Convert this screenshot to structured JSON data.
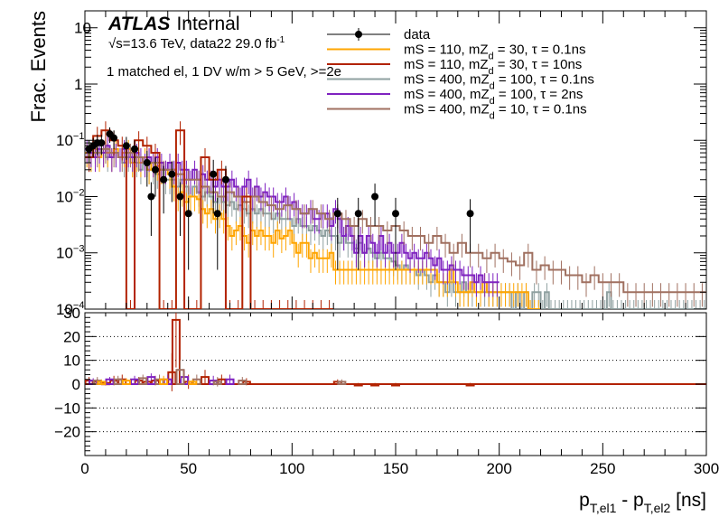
{
  "chart_data": [
    {
      "type": "histogram",
      "label_atlas": "ATLAS",
      "label_status": "Internal",
      "energy_text": "√s=13.6 TeV, data22 29.0 fb",
      "energy_sup": "-1",
      "selection_text": "1 matched el, 1 DV w/m > 5 GeV, >=2e",
      "ylabel": "Frac. Events",
      "yscale": "log",
      "ylim": [
        0.0001,
        20
      ],
      "xlim": [
        0,
        300
      ],
      "yticks": [
        {
          "value": 10,
          "base": "10",
          "exp": ""
        },
        {
          "value": 1,
          "base": "1",
          "exp": ""
        },
        {
          "value": 0.1,
          "base": "10",
          "exp": "−1"
        },
        {
          "value": 0.01,
          "base": "10",
          "exp": "−2"
        },
        {
          "value": 0.001,
          "base": "10",
          "exp": "−3"
        },
        {
          "value": 0.0001,
          "base": "10",
          "exp": "−4"
        }
      ],
      "series": [
        {
          "name": "data",
          "kind": "points",
          "color": "#000000",
          "points": [
            {
              "x": 2,
              "y": 0.07,
              "err": 0.03
            },
            {
              "x": 4,
              "y": 0.08,
              "err": 0.03
            },
            {
              "x": 6,
              "y": 0.09,
              "err": 0.035
            },
            {
              "x": 8,
              "y": 0.09,
              "err": 0.035
            },
            {
              "x": 12,
              "y": 0.13,
              "err": 0.04
            },
            {
              "x": 14,
              "y": 0.11,
              "err": 0.04
            },
            {
              "x": 20,
              "y": 0.08,
              "err": 0.035
            },
            {
              "x": 24,
              "y": 0.07,
              "err": 0.03
            },
            {
              "x": 30,
              "y": 0.04,
              "err": 0.025
            },
            {
              "x": 32,
              "y": 0.01,
              "err": 0.008
            },
            {
              "x": 34,
              "y": 0.03,
              "err": 0.02
            },
            {
              "x": 38,
              "y": 0.02,
              "err": 0.015
            },
            {
              "x": 42,
              "y": 0.025,
              "err": 0.017
            },
            {
              "x": 46,
              "y": 0.01,
              "err": 0.008
            },
            {
              "x": 50,
              "y": 0.005,
              "err": 0.0045
            },
            {
              "x": 62,
              "y": 0.025,
              "err": 0.02
            },
            {
              "x": 64,
              "y": 0.005,
              "err": 0.0045
            },
            {
              "x": 68,
              "y": 0.02,
              "err": 0.015
            },
            {
              "x": 122,
              "y": 0.005,
              "err": 0.0045
            },
            {
              "x": 132,
              "y": 0.005,
              "err": 0.0045
            },
            {
              "x": 140,
              "y": 0.01,
              "err": 0.007
            },
            {
              "x": 150,
              "y": 0.005,
              "err": 0.0045
            },
            {
              "x": 186,
              "y": 0.005,
              "err": 0.004
            }
          ]
        },
        {
          "name": "mS = 110, mZ_d = 30, τ = 0.1ns",
          "kind": "hist",
          "color": "#ffa500",
          "bin_width": 2,
          "values": [
            0.06,
            0.05,
            0.07,
            0.05,
            0.06,
            0.06,
            0.05,
            0.07,
            0.05,
            0.06,
            0.07,
            0.04,
            0.05,
            0.04,
            0.05,
            0.03,
            0.04,
            0.035,
            0.03,
            0.03,
            0.025,
            0.015,
            0.01,
            0.012,
            0.008,
            0.01,
            0.01,
            0.009,
            0.006,
            0.005,
            0.006,
            0.004,
            0.005,
            0.004,
            0.003,
            0.002,
            0.0025,
            0.003,
            0.002,
            0.0015,
            0.0025,
            0.002,
            0.0025,
            0.002,
            0.002,
            0.0015,
            0.0025,
            0.0018,
            0.002,
            0.0025,
            0.0015,
            0.001,
            0.0015,
            0.0015,
            0.0008,
            0.001,
            0.0008,
            0.0008,
            0.0008,
            0.001,
            0.0005,
            0.0005,
            0.0005,
            0.0005,
            0.0005,
            0.0005,
            0.0005,
            0.0005,
            0.0005,
            0.0005,
            0.0005,
            0.0005,
            0.0005,
            0.0005,
            0.0005,
            0.0005,
            0.0005,
            0.0005,
            0.0005,
            0.0005,
            0.0005,
            0.0005,
            0.0005,
            0.0005,
            0.0005,
            0.0003,
            0.0003,
            0.0003,
            0.0005,
            0.0003,
            0.0002,
            0.0002,
            0.0002,
            0.0003,
            0.0002,
            0.0002,
            0.0003,
            0.0002,
            0.0002,
            0.0002,
            0.0002,
            0.0002,
            0.0002,
            0.0002,
            0.0002,
            0.0002,
            0.0002,
            0.0001,
            0.0001,
            0.0001
          ]
        },
        {
          "name": "mS = 110, mZ_d = 30, τ = 10ns",
          "kind": "hist",
          "color": "#b22200",
          "bin_width": 4,
          "values": [
            0.05,
            0.12,
            0.15,
            0.1,
            0.08,
            0.0001,
            0.1,
            0.08,
            0.06,
            0.0001,
            0.0001,
            0.15,
            0.0001,
            0.0001,
            0.05,
            0.02,
            0.03,
            0.0001,
            0.0001,
            0.01,
            0.0001,
            0.0001,
            0.0001,
            0.0001,
            0.0001,
            0.0001,
            0.0001,
            0.0001,
            0.0001,
            0.0001
          ]
        },
        {
          "name": "mS = 400, mZ_d = 100, τ = 0.1ns",
          "kind": "hist",
          "color": "#8fa0a0",
          "bin_width": 2,
          "values": [
            0.06,
            0.05,
            0.07,
            0.06,
            0.06,
            0.05,
            0.05,
            0.06,
            0.05,
            0.04,
            0.05,
            0.04,
            0.04,
            0.03,
            0.04,
            0.03,
            0.03,
            0.025,
            0.03,
            0.02,
            0.02,
            0.02,
            0.015,
            0.02,
            0.015,
            0.01,
            0.015,
            0.012,
            0.01,
            0.012,
            0.01,
            0.008,
            0.01,
            0.008,
            0.007,
            0.008,
            0.006,
            0.007,
            0.006,
            0.005,
            0.006,
            0.005,
            0.006,
            0.005,
            0.005,
            0.004,
            0.005,
            0.004,
            0.004,
            0.004,
            0.003,
            0.004,
            0.003,
            0.003,
            0.0025,
            0.003,
            0.0025,
            0.002,
            0.0025,
            0.002,
            0.002,
            0.0015,
            0.002,
            0.0015,
            0.0015,
            0.0012,
            0.0015,
            0.001,
            0.0012,
            0.001,
            0.0008,
            0.001,
            0.0008,
            0.0008,
            0.0007,
            0.0006,
            0.0005,
            0.0006,
            0.0005,
            0.0005,
            0.0004,
            0.0005,
            0.0004,
            0.0003,
            0.0004,
            0.0003,
            0.0003,
            0.0002,
            0.0003,
            0.0002,
            0.0002,
            0.0003,
            0.0002,
            0.0002,
            0.0002,
            0.0002,
            0.0002,
            0.0002,
            0.0002,
            0.0002,
            0.0002,
            0.0002,
            0.0002,
            0.0001,
            0.0002,
            0.0001,
            0.0002,
            0.0001,
            0.0002,
            0.0002,
            0.0001,
            0.0002,
            0.0001,
            0.0001,
            0.0001,
            0.0001,
            0.0001,
            0.0001,
            0.0001,
            0.0001,
            0.0001,
            0.0001,
            0.0001,
            0.0001,
            0.0001,
            0.0001,
            0.0002,
            0.0001,
            0.0001,
            0.0001,
            0.0001,
            0.0001,
            0.0001,
            0.0001,
            0.0001,
            0.0001,
            0.0001,
            0.0001,
            0.0001,
            0.0001,
            0.0001,
            0.0001,
            0.0001,
            0.0001,
            0.0001,
            0.0001,
            0.0001,
            0.0001,
            0.0001,
            0.0001
          ]
        },
        {
          "name": "mS = 400, mZ_d = 100, τ = 2ns",
          "kind": "hist",
          "color": "#7f22c0",
          "bin_width": 2,
          "values": [
            0.07,
            0.06,
            0.05,
            0.07,
            0.06,
            0.08,
            0.05,
            0.06,
            0.05,
            0.07,
            0.06,
            0.05,
            0.06,
            0.05,
            0.04,
            0.05,
            0.04,
            0.05,
            0.04,
            0.03,
            0.04,
            0.03,
            0.04,
            0.03,
            0.03,
            0.02,
            0.03,
            0.02,
            0.025,
            0.02,
            0.02,
            0.015,
            0.02,
            0.015,
            0.015,
            0.02,
            0.015,
            0.01,
            0.015,
            0.02,
            0.01,
            0.015,
            0.01,
            0.012,
            0.01,
            0.01,
            0.008,
            0.008,
            0.01,
            0.007,
            0.008,
            0.006,
            0.005,
            0.005,
            0.006,
            0.004,
            0.004,
            0.005,
            0.005,
            0.003,
            0.006,
            0.004,
            0.002,
            0.003,
            0.002,
            0.001,
            0.002,
            0.001,
            0.002,
            0.0015,
            0.001,
            0.002,
            0.001,
            0.0015,
            0.001,
            0.001,
            0.0015,
            0.001,
            0.0008,
            0.001,
            0.0008,
            0.0008,
            0.001,
            0.0008,
            0.0006,
            0.0008,
            0.0005,
            0.0005,
            0.0006,
            0.0005,
            0.0005,
            0.0004,
            0.0004,
            0.0004,
            0.0003,
            0.0004,
            0.0003,
            0.0003,
            0.0003,
            0.0003
          ]
        },
        {
          "name": "mS = 400, mZ_d = 10, τ = 0.1ns",
          "kind": "hist",
          "color": "#a07060",
          "bin_width": 4,
          "values": [
            0.05,
            0.06,
            0.07,
            0.06,
            0.05,
            0.06,
            0.05,
            0.04,
            0.04,
            0.03,
            0.03,
            0.025,
            0.02,
            0.02,
            0.015,
            0.012,
            0.01,
            0.012,
            0.01,
            0.008,
            0.01,
            0.008,
            0.007,
            0.006,
            0.007,
            0.006,
            0.005,
            0.006,
            0.005,
            0.004,
            0.005,
            0.004,
            0.003,
            0.004,
            0.003,
            0.003,
            0.0025,
            0.003,
            0.0025,
            0.002,
            0.002,
            0.0015,
            0.002,
            0.0015,
            0.001,
            0.0015,
            0.001,
            0.001,
            0.0008,
            0.001,
            0.0008,
            0.0007,
            0.0006,
            0.001,
            0.0005,
            0.0006,
            0.0005,
            0.0005,
            0.0004,
            0.0004,
            0.0003,
            0.0004,
            0.0003,
            0.0003,
            0.0003,
            0.0002,
            0.0002,
            0.0002,
            0.0002,
            0.0002,
            0.0002,
            0.0002,
            0.0002,
            0.0002,
            0.0002
          ]
        }
      ]
    },
    {
      "type": "line",
      "panel": "ratio",
      "xlabel_main": "p",
      "xlabel_sub1": "T,el1",
      "xlabel_mid": " - p",
      "xlabel_sub2": "T,el2",
      "xlabel_unit": " [ns]",
      "xlim": [
        0,
        300
      ],
      "ylim": [
        -30,
        30
      ],
      "yticks": [
        30,
        20,
        10,
        0,
        -10,
        -20
      ],
      "xticks": [
        0,
        50,
        100,
        150,
        200,
        250,
        300
      ],
      "series": [
        {
          "name": "mS = 110, mZ_d = 30, τ = 10ns",
          "color": "#b22200",
          "points": [
            {
              "x": 2,
              "y": 1.5,
              "err": 1.5
            },
            {
              "x": 6,
              "y": 1,
              "err": 1.2
            },
            {
              "x": 10,
              "y": 0.5,
              "err": 1
            },
            {
              "x": 14,
              "y": 1.5,
              "err": 2
            },
            {
              "x": 18,
              "y": 2,
              "err": 2
            },
            {
              "x": 26,
              "y": 1.5,
              "err": 1.5
            },
            {
              "x": 30,
              "y": 1,
              "err": 1
            },
            {
              "x": 34,
              "y": 1.5,
              "err": 2
            },
            {
              "x": 42,
              "y": 5,
              "err": 8
            },
            {
              "x": 44,
              "y": 27,
              "err": 20
            },
            {
              "x": 50,
              "y": 1,
              "err": 3
            },
            {
              "x": 58,
              "y": 3,
              "err": 3
            },
            {
              "x": 66,
              "y": 2,
              "err": 2
            },
            {
              "x": 78,
              "y": 1,
              "err": 1.5
            },
            {
              "x": 122,
              "y": 1,
              "err": 1
            },
            {
              "x": 132,
              "y": 0,
              "err": 0.5
            },
            {
              "x": 140,
              "y": 0,
              "err": 0.5
            },
            {
              "x": 150,
              "y": 0,
              "err": 0.5
            },
            {
              "x": 186,
              "y": 0,
              "err": 0.5
            }
          ]
        },
        {
          "name": "mS = 400, mZ_d = 100, τ = 2ns",
          "color": "#7f22c0",
          "points": [
            {
              "x": 4,
              "y": 1.5,
              "err": 1
            },
            {
              "x": 12,
              "y": 2,
              "err": 1
            },
            {
              "x": 24,
              "y": 2,
              "err": 1.5
            },
            {
              "x": 32,
              "y": 3,
              "err": 1.5
            },
            {
              "x": 40,
              "y": 2,
              "err": 2
            },
            {
              "x": 48,
              "y": 3,
              "err": 3
            },
            {
              "x": 62,
              "y": 1.5,
              "err": 2
            },
            {
              "x": 70,
              "y": 2,
              "err": 2
            }
          ]
        },
        {
          "name": "mS = 400, mZ_d = 10, τ = 0.1ns",
          "color": "#a07060",
          "points": [
            {
              "x": 6,
              "y": 1.5,
              "err": 1.5
            },
            {
              "x": 16,
              "y": 2,
              "err": 1.5
            },
            {
              "x": 28,
              "y": 2.5,
              "err": 1.5
            },
            {
              "x": 36,
              "y": 2,
              "err": 2
            },
            {
              "x": 46,
              "y": 6,
              "err": 4
            },
            {
              "x": 54,
              "y": 2,
              "err": 2
            },
            {
              "x": 64,
              "y": 1,
              "err": 2
            },
            {
              "x": 76,
              "y": 1.5,
              "err": 1.5
            },
            {
              "x": 124,
              "y": 1,
              "err": 1
            }
          ]
        },
        {
          "name": "mS = 110, mZ_d = 30, τ = 0.1ns",
          "color": "#ffa500",
          "points": [
            {
              "x": 8,
              "y": 1,
              "err": 1
            },
            {
              "x": 20,
              "y": 1.5,
              "err": 1
            },
            {
              "x": 38,
              "y": 2,
              "err": 1.5
            },
            {
              "x": 52,
              "y": 1,
              "err": 1
            }
          ]
        }
      ]
    }
  ]
}
